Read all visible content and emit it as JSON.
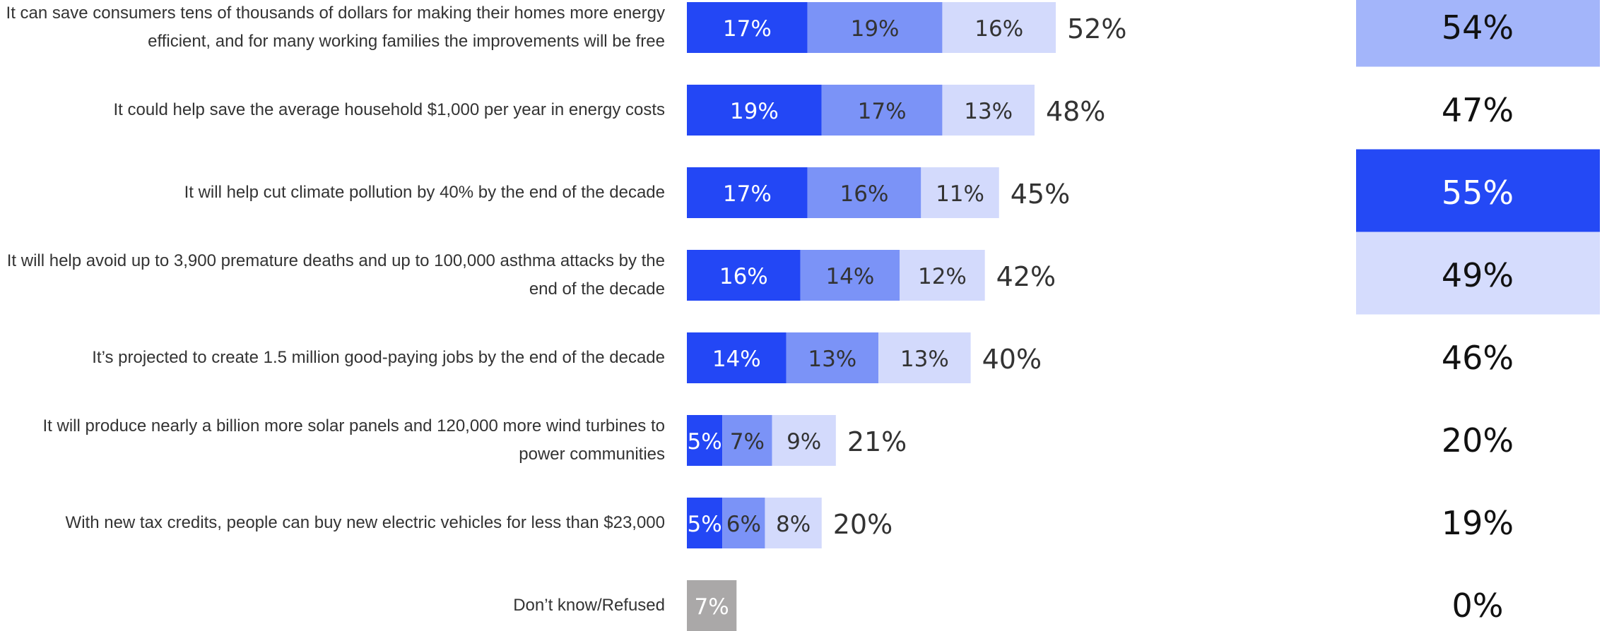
{
  "chart_data": {
    "type": "bar",
    "orientation": "horizontal",
    "stacked": true,
    "categories": [
      "It can save consumers tens of thousands of dollars for making their homes more energy efficient, and for many working families the improvements will be free",
      "It could help save the average household $1,000 per year in energy costs",
      "It will help cut climate pollution by 40% by the end of the decade",
      "It will help avoid up to 3,900 premature deaths and up to 100,000 asthma attacks by the end of the decade",
      "It’s projected to create 1.5 million good-paying jobs by the end of the decade",
      "It will produce nearly a billion more solar panels and 120,000 more wind turbines to power communities",
      "With new tax credits, people can buy new electric vehicles for less than $23,000",
      "Don’t know/Refused"
    ],
    "series": [
      {
        "color": "#2347f5",
        "label_color": "#ffffff",
        "values": [
          17,
          19,
          17,
          16,
          14,
          5,
          5,
          null
        ],
        "value_labels": [
          "17%",
          "19%",
          "17%",
          "16%",
          "14%",
          "5%",
          "5%",
          null
        ]
      },
      {
        "color": "#7b93f7",
        "label_color": "#333333",
        "values": [
          19,
          17,
          16,
          14,
          13,
          7,
          6,
          null
        ],
        "value_labels": [
          "19%",
          "17%",
          "16%",
          "14%",
          "13%",
          "7%",
          "6%",
          null
        ]
      },
      {
        "color": "#d3dafc",
        "label_color": "#333333",
        "values": [
          16,
          13,
          11,
          12,
          13,
          9,
          8,
          null
        ],
        "value_labels": [
          "16%",
          "13%",
          "11%",
          "12%",
          "13%",
          "9%",
          "8%",
          null
        ]
      },
      {
        "color": "#aaa8a8",
        "label_color": "#ffffff",
        "values": [
          null,
          null,
          null,
          null,
          null,
          null,
          null,
          7
        ],
        "value_labels": [
          null,
          null,
          null,
          null,
          null,
          null,
          null,
          "7%"
        ]
      }
    ],
    "totals": [
      52,
      48,
      45,
      42,
      40,
      21,
      20,
      null
    ],
    "total_labels": [
      "52%",
      "48%",
      "45%",
      "42%",
      "40%",
      "21%",
      "20%",
      null
    ],
    "comparison": {
      "values": [
        54,
        47,
        55,
        49,
        46,
        20,
        19,
        0
      ],
      "value_labels": [
        "54%",
        "47%",
        "55%",
        "49%",
        "46%",
        "20%",
        "19%",
        "0%"
      ],
      "colors": [
        "#a3b5fa",
        null,
        "#2449f5",
        "#d5dcfd",
        null,
        null,
        null,
        null
      ],
      "text_colors": [
        "#111111",
        "#111111",
        "#ffffff",
        "#111111",
        "#111111",
        "#111111",
        "#111111",
        "#111111"
      ]
    }
  }
}
